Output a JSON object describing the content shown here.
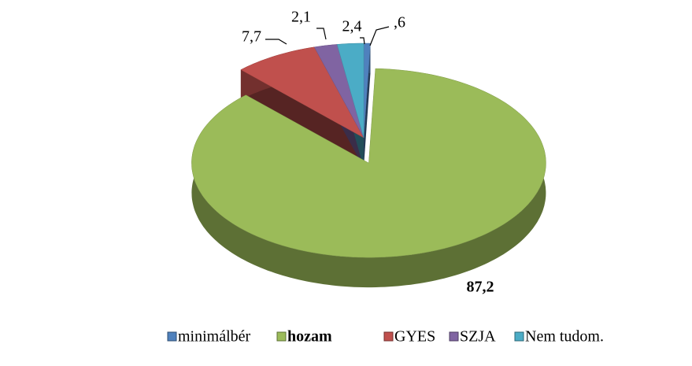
{
  "chart_data": {
    "type": "pie3d",
    "categories": [
      "minimálbér",
      "hozam",
      "GYES",
      "SZJA",
      "Nem tudom."
    ],
    "values": [
      0.6,
      87.2,
      7.7,
      2.1,
      2.4
    ],
    "value_labels": [
      ",6",
      "87,2",
      "7,7",
      "2,1",
      "2,4"
    ],
    "colors": [
      "#4f81bd",
      "#9bbb59",
      "#c0504d",
      "#8064a2",
      "#4bacc6"
    ],
    "legend": "bottom"
  }
}
